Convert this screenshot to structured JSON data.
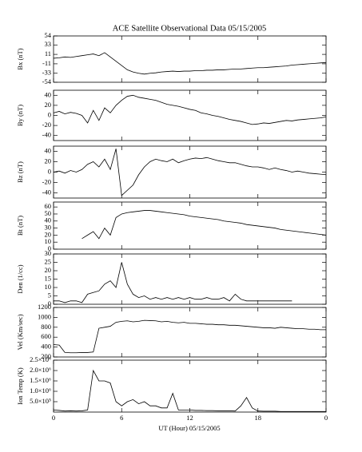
{
  "chart_data": [
    {
      "type": "line",
      "title": "ACE Satellite Observational Data   05/15/2005",
      "ylabel": "Bx (nT)",
      "x": [
        0,
        0.5,
        1,
        1.5,
        2,
        2.5,
        3,
        3.5,
        4,
        4.5,
        5,
        5.5,
        6,
        6.5,
        7,
        7.5,
        8,
        8.5,
        9,
        9.5,
        10,
        10.5,
        11,
        11.5,
        12,
        12.5,
        13,
        13.5,
        14,
        14.5,
        15,
        15.5,
        16,
        16.5,
        17,
        17.5,
        18,
        18.5,
        19,
        19.5,
        20,
        20.5,
        21,
        21.5,
        22,
        22.5,
        23,
        23.5,
        24
      ],
      "values": [
        2,
        3,
        5,
        4,
        6,
        8,
        10,
        12,
        8,
        15,
        5,
        -5,
        -15,
        -25,
        -30,
        -33,
        -35,
        -33,
        -32,
        -30,
        -29,
        -28,
        -29,
        -28,
        -28,
        -27,
        -27,
        -26,
        -26,
        -25,
        -25,
        -24,
        -23,
        -23,
        -22,
        -21,
        -20,
        -20,
        -19,
        -18,
        -17,
        -16,
        -14,
        -13,
        -12,
        -11,
        -10,
        -9,
        -8
      ],
      "xlim": [
        0,
        24
      ],
      "ylim": [
        -54,
        54
      ],
      "yticks": [
        54,
        33,
        11,
        -11,
        -33,
        -54
      ],
      "color": "#000000"
    },
    {
      "type": "line",
      "ylabel": "By (nT)",
      "x": [
        0,
        0.5,
        1,
        1.5,
        2,
        2.5,
        3,
        3.5,
        4,
        4.5,
        5,
        5.5,
        6,
        6.5,
        7,
        7.5,
        8,
        8.5,
        9,
        9.5,
        10,
        10.5,
        11,
        11.5,
        12,
        12.5,
        13,
        13.5,
        14,
        14.5,
        15,
        15.5,
        16,
        16.5,
        17,
        17.5,
        18,
        18.5,
        19,
        19.5,
        20,
        20.5,
        21,
        21.5,
        22,
        22.5,
        23,
        23.5,
        24
      ],
      "values": [
        5,
        8,
        3,
        6,
        4,
        0,
        -15,
        10,
        -10,
        15,
        5,
        20,
        30,
        38,
        40,
        36,
        34,
        32,
        30,
        26,
        22,
        20,
        18,
        15,
        12,
        10,
        5,
        3,
        0,
        -2,
        -5,
        -8,
        -10,
        -12,
        -15,
        -18,
        -17,
        -15,
        -16,
        -14,
        -12,
        -10,
        -11,
        -9,
        -8,
        -7,
        -6,
        -5,
        -3
      ],
      "xlim": [
        0,
        24
      ],
      "ylim": [
        -50,
        50
      ],
      "yticks": [
        40,
        20,
        0,
        -20,
        -40
      ],
      "color": "#000000"
    },
    {
      "type": "line",
      "ylabel": "Bz (nT)",
      "x": [
        0,
        0.5,
        1,
        1.5,
        2,
        2.5,
        3,
        3.5,
        4,
        4.5,
        5,
        5.5,
        6,
        6.5,
        7,
        7.5,
        8,
        8.5,
        9,
        9.5,
        10,
        10.5,
        11,
        11.5,
        12,
        12.5,
        13,
        13.5,
        14,
        14.5,
        15,
        15.5,
        16,
        16.5,
        17,
        17.5,
        18,
        18.5,
        19,
        19.5,
        20,
        20.5,
        21,
        21.5,
        22,
        22.5,
        23,
        23.5,
        24
      ],
      "values": [
        0,
        2,
        -2,
        3,
        0,
        5,
        15,
        20,
        10,
        25,
        5,
        45,
        -45,
        -35,
        -25,
        -5,
        10,
        20,
        25,
        22,
        20,
        25,
        18,
        22,
        25,
        27,
        26,
        28,
        25,
        22,
        20,
        18,
        18,
        15,
        12,
        10,
        10,
        8,
        5,
        8,
        5,
        3,
        0,
        2,
        0,
        -2,
        -3,
        -4,
        -5
      ],
      "xlim": [
        0,
        24
      ],
      "ylim": [
        -50,
        50
      ],
      "yticks": [
        40,
        20,
        0,
        -20,
        -40
      ],
      "color": "#000000"
    },
    {
      "type": "line",
      "ylabel": "Bt (nT)",
      "x": [
        0,
        0.5,
        1,
        1.5,
        2,
        2.5,
        3,
        3.5,
        4,
        4.5,
        5,
        5.5,
        6,
        6.5,
        7,
        7.5,
        8,
        8.5,
        9,
        9.5,
        10,
        10.5,
        11,
        11.5,
        12,
        12.5,
        13,
        13.5,
        14,
        14.5,
        15,
        15.5,
        16,
        16.5,
        17,
        17.5,
        18,
        18.5,
        19,
        19.5,
        20,
        20.5,
        21,
        21.5,
        22,
        22.5,
        23,
        23.5,
        24
      ],
      "values": [
        null,
        null,
        null,
        null,
        null,
        15,
        20,
        25,
        15,
        30,
        20,
        45,
        50,
        52,
        53,
        54,
        55,
        55,
        54,
        53,
        52,
        51,
        50,
        49,
        47,
        46,
        45,
        44,
        43,
        42,
        40,
        39,
        38,
        37,
        35,
        34,
        33,
        32,
        31,
        30,
        28,
        27,
        26,
        25,
        24,
        23,
        22,
        21,
        20
      ],
      "xlim": [
        0,
        24
      ],
      "ylim": [
        0,
        67
      ],
      "yticks": [
        0,
        10,
        20,
        30,
        40,
        50,
        60
      ],
      "color": "#000000"
    },
    {
      "type": "line",
      "ylabel": "Den (1/cc)",
      "x": [
        0,
        0.5,
        1,
        1.5,
        2,
        2.5,
        3,
        3.5,
        4,
        4.5,
        5,
        5.5,
        6,
        6.5,
        7,
        7.5,
        8,
        8.5,
        9,
        9.5,
        10,
        10.5,
        11,
        11.5,
        12,
        12.5,
        13,
        13.5,
        14,
        14.5,
        15,
        15.5,
        16,
        16.5,
        17,
        17.5,
        18,
        18.5,
        19,
        19.5,
        20,
        20.5,
        21,
        21.5,
        22,
        22.5,
        23,
        23.5,
        24
      ],
      "values": [
        2,
        2,
        1,
        2,
        2,
        1,
        6,
        7,
        8,
        12,
        14,
        10,
        25,
        12,
        6,
        4,
        5,
        3,
        4,
        3,
        4,
        3,
        4,
        3,
        4,
        3,
        3,
        4,
        3,
        3,
        4,
        2,
        6,
        3,
        2,
        2,
        2,
        2,
        2,
        2,
        2,
        2,
        2,
        null,
        null,
        null,
        null,
        null,
        null
      ],
      "xlim": [
        0,
        24
      ],
      "ylim": [
        0,
        30
      ],
      "yticks": [
        0,
        5,
        10,
        15,
        20,
        25,
        30
      ],
      "color": "#000000"
    },
    {
      "type": "line",
      "ylabel": "Vel (Km/sec)",
      "x": [
        0,
        0.5,
        1,
        1.5,
        2,
        2.5,
        3,
        3.5,
        4,
        4.5,
        5,
        5.5,
        6,
        6.5,
        7,
        7.5,
        8,
        8.5,
        9,
        9.5,
        10,
        10.5,
        11,
        11.5,
        12,
        12.5,
        13,
        13.5,
        14,
        14.5,
        15,
        15.5,
        16,
        16.5,
        17,
        17.5,
        18,
        18.5,
        19,
        19.5,
        20,
        20.5,
        21,
        21.5,
        22,
        22.5,
        23,
        23.5,
        24
      ],
      "values": [
        450,
        440,
        290,
        285,
        285,
        290,
        290,
        300,
        780,
        800,
        820,
        900,
        920,
        930,
        910,
        920,
        940,
        935,
        930,
        910,
        920,
        900,
        890,
        900,
        880,
        880,
        870,
        860,
        860,
        850,
        850,
        840,
        840,
        830,
        820,
        810,
        800,
        790,
        790,
        780,
        800,
        790,
        780,
        770,
        770,
        760,
        760,
        750,
        750
      ],
      "xlim": [
        0,
        24
      ],
      "ylim": [
        200,
        1200
      ],
      "yticks": [
        200,
        400,
        600,
        800,
        1000,
        1200
      ],
      "color": "#000000"
    },
    {
      "type": "line",
      "ylabel": "Ion Temp (K)",
      "xlabel": "UT (Hour)   05/15/2005",
      "x": [
        0,
        0.5,
        1,
        1.5,
        2,
        2.5,
        3,
        3.5,
        4,
        4.5,
        5,
        5.5,
        6,
        6.5,
        7,
        7.5,
        8,
        8.5,
        9,
        9.5,
        10,
        10.5,
        11,
        11.5,
        12,
        12.5,
        13,
        13.5,
        14,
        14.5,
        15,
        15.5,
        16,
        16.5,
        17,
        17.5,
        18,
        18.5,
        19,
        19.5,
        20,
        20.5,
        21,
        21.5,
        22,
        22.5,
        23,
        23.5,
        24
      ],
      "values": [
        100000,
        80000,
        50000,
        60000,
        50000,
        60000,
        100000,
        2000000,
        1500000,
        1500000,
        1400000,
        500000,
        300000,
        500000,
        600000,
        400000,
        500000,
        300000,
        300000,
        200000,
        200000,
        900000,
        100000,
        100000,
        100000,
        80000,
        80000,
        70000,
        70000,
        60000,
        60000,
        60000,
        50000,
        300000,
        700000,
        200000,
        50000,
        40000,
        40000,
        40000,
        30000,
        30000,
        30000,
        30000,
        30000,
        30000,
        30000,
        30000,
        30000
      ],
      "xlim": [
        0,
        24
      ],
      "ylim": [
        0,
        2500000
      ],
      "yticks": [
        {
          "value": 500000,
          "label": "5.0×10⁵"
        },
        {
          "value": 1000000,
          "label": "1.0×10⁶"
        },
        {
          "value": 1500000,
          "label": "1.5×10⁶"
        },
        {
          "value": 2000000,
          "label": "2.0×10⁶"
        },
        {
          "value": 2500000,
          "label": "2.5×10⁶"
        }
      ],
      "xticks": [
        0,
        6,
        12,
        18,
        {
          "value": 24,
          "label": "0"
        }
      ],
      "color": "#000000"
    }
  ]
}
